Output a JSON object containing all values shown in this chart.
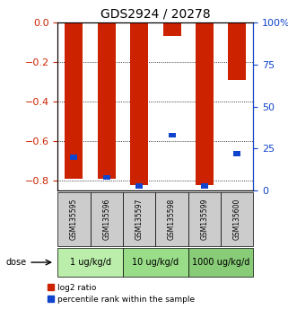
{
  "title": "GDS2924 / 20278",
  "samples": [
    "GSM135595",
    "GSM135596",
    "GSM135597",
    "GSM135598",
    "GSM135599",
    "GSM135600"
  ],
  "log2_ratios": [
    -0.79,
    -0.79,
    -0.82,
    -0.07,
    -0.82,
    -0.29
  ],
  "percentile_ranks_pct": [
    20,
    8,
    3,
    33,
    3,
    22
  ],
  "dose_groups": [
    {
      "label": "1 ug/kg/d",
      "samples": [
        0,
        1
      ]
    },
    {
      "label": "10 ug/kg/d",
      "samples": [
        2,
        3
      ]
    },
    {
      "label": "1000 ug/kg/d",
      "samples": [
        4,
        5
      ]
    }
  ],
  "ylim_left": [
    -0.85,
    0.0
  ],
  "ylim_right": [
    0,
    100
  ],
  "yticks_left": [
    0.0,
    -0.2,
    -0.4,
    -0.6,
    -0.8
  ],
  "yticks_right": [
    0,
    25,
    50,
    75,
    100
  ],
  "bar_color_red": "#cc2200",
  "bar_color_blue": "#1144cc",
  "bar_width": 0.55,
  "bg_sample_labels": "#cccccc",
  "bg_dose_labels": [
    "#bbeeaa",
    "#99dd88",
    "#88cc77"
  ],
  "left_axis_color": "#cc2200",
  "right_axis_color": "#1144cc",
  "legend_red_label": "log2 ratio",
  "legend_blue_label": "percentile rank within the sample",
  "figsize": [
    3.21,
    3.54
  ],
  "dpi": 100
}
